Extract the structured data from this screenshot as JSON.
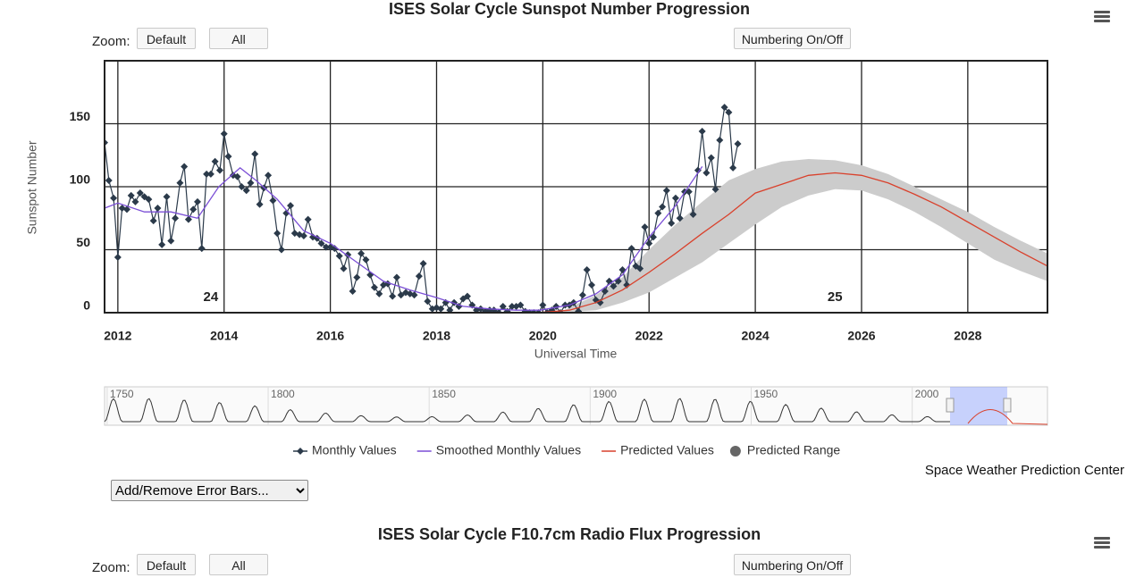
{
  "chart_data": {
    "type": "line",
    "title": "ISES Solar Cycle Sunspot Number Progression",
    "xlabel": "Universal Time",
    "ylabel": "Sunspot Number",
    "xlim": [
      2011.75,
      2029.5
    ],
    "ylim": [
      0,
      200
    ],
    "xticks": [
      2012,
      2014,
      2016,
      2018,
      2020,
      2022,
      2024,
      2026,
      2028
    ],
    "yticks": [
      0,
      50,
      100,
      150
    ],
    "grid": true,
    "annotations": [
      {
        "text": "24",
        "x": 2013.75
      },
      {
        "text": "25",
        "x": 2025.5
      }
    ],
    "series": [
      {
        "name": "Monthly Values",
        "color": "#2b3a4a",
        "marker": "diamond",
        "x": [
          2011.75,
          2011.83,
          2011.92,
          2012.0,
          2012.08,
          2012.17,
          2012.25,
          2012.33,
          2012.42,
          2012.5,
          2012.58,
          2012.67,
          2012.75,
          2012.83,
          2012.92,
          2013.0,
          2013.08,
          2013.17,
          2013.25,
          2013.33,
          2013.42,
          2013.5,
          2013.58,
          2013.67,
          2013.75,
          2013.83,
          2013.92,
          2014.0,
          2014.08,
          2014.17,
          2014.25,
          2014.33,
          2014.42,
          2014.5,
          2014.58,
          2014.67,
          2014.75,
          2014.83,
          2014.92,
          2015.0,
          2015.08,
          2015.17,
          2015.25,
          2015.33,
          2015.42,
          2015.5,
          2015.58,
          2015.67,
          2015.75,
          2015.83,
          2015.92,
          2016.0,
          2016.08,
          2016.17,
          2016.25,
          2016.33,
          2016.42,
          2016.5,
          2016.58,
          2016.67,
          2016.75,
          2016.83,
          2016.92,
          2017.0,
          2017.08,
          2017.17,
          2017.25,
          2017.33,
          2017.42,
          2017.5,
          2017.58,
          2017.67,
          2017.75,
          2017.83,
          2017.92,
          2018.0,
          2018.08,
          2018.17,
          2018.25,
          2018.33,
          2018.42,
          2018.5,
          2018.58,
          2018.67,
          2018.75,
          2018.83,
          2018.92,
          2019.0,
          2019.08,
          2019.17,
          2019.25,
          2019.33,
          2019.42,
          2019.5,
          2019.58,
          2019.67,
          2019.75,
          2019.83,
          2019.92,
          2020.0,
          2020.08,
          2020.17,
          2020.25,
          2020.33,
          2020.42,
          2020.5,
          2020.58,
          2020.67,
          2020.75,
          2020.83,
          2020.92,
          2021.0,
          2021.08,
          2021.17,
          2021.25,
          2021.33,
          2021.42,
          2021.5,
          2021.58,
          2021.67,
          2021.75,
          2021.83,
          2021.92,
          2022.0,
          2022.08,
          2022.17,
          2022.25,
          2022.33,
          2022.42,
          2022.5,
          2022.58,
          2022.67,
          2022.75,
          2022.83,
          2022.92,
          2023.0,
          2023.08,
          2023.17,
          2023.25,
          2023.33,
          2023.42,
          2023.5,
          2023.58,
          2023.67
        ],
        "values": [
          135,
          105,
          91,
          44,
          83,
          82,
          93,
          88,
          95,
          92,
          90,
          73,
          83,
          54,
          92,
          57,
          75,
          103,
          116,
          74,
          82,
          88,
          51,
          110,
          110,
          120,
          113,
          142,
          124,
          109,
          108,
          100,
          97,
          103,
          126,
          86,
          99,
          109,
          89,
          63,
          50,
          79,
          85,
          63,
          62,
          61,
          74,
          60,
          59,
          55,
          52,
          52,
          51,
          45,
          35,
          46,
          17,
          28,
          47,
          42,
          30,
          20,
          15,
          22,
          23,
          13,
          28,
          14,
          16,
          15,
          14,
          29,
          39,
          9,
          3,
          4,
          3,
          8,
          2,
          8,
          5,
          11,
          13,
          6,
          2,
          3,
          1,
          2,
          2,
          0,
          5,
          1,
          5,
          5,
          6,
          1,
          0,
          0,
          0,
          6,
          0,
          2,
          5,
          0,
          6,
          6,
          8,
          1,
          14,
          34,
          22,
          10,
          8,
          17,
          25,
          21,
          25,
          34,
          22,
          51,
          37,
          35,
          68,
          55,
          60,
          79,
          84,
          97,
          71,
          91,
          75,
          96,
          96,
          78,
          113,
          144,
          111,
          123,
          98,
          137,
          163,
          159,
          115,
          134
        ]
      },
      {
        "name": "Smoothed Monthly Values",
        "color": "#7b4fd6",
        "x": [
          2011.75,
          2012.0,
          2012.5,
          2013.0,
          2013.5,
          2013.9,
          2014.3,
          2014.6,
          2015.0,
          2015.5,
          2016.0,
          2016.5,
          2017.0,
          2017.5,
          2018.0,
          2018.5,
          2019.0,
          2019.5,
          2019.95,
          2020.5,
          2021.0,
          2021.5,
          2022.0,
          2022.5,
          2023.0
        ],
        "values": [
          83,
          87,
          80,
          80,
          75,
          100,
          115,
          105,
          90,
          65,
          55,
          40,
          25,
          18,
          12,
          5,
          3,
          2,
          2,
          6,
          15,
          30,
          60,
          85,
          116
        ]
      },
      {
        "name": "Predicted Values",
        "color": "#d9412c",
        "x": [
          2019.9,
          2020.5,
          2021.0,
          2021.5,
          2022.0,
          2022.5,
          2023.0,
          2023.5,
          2024.0,
          2024.5,
          2025.0,
          2025.5,
          2026.0,
          2026.5,
          2027.0,
          2027.5,
          2028.0,
          2028.5,
          2029.0,
          2029.5
        ],
        "values": [
          0,
          2,
          8,
          18,
          32,
          47,
          63,
          78,
          95,
          102,
          109,
          111,
          109,
          103,
          94,
          84,
          72,
          60,
          48,
          37
        ]
      },
      {
        "name": "Predicted Range",
        "color": "#cccccc",
        "legend_color": "#666666",
        "x": [
          2020.3,
          2021.0,
          2021.5,
          2022.0,
          2022.5,
          2023.0,
          2023.5,
          2024.0,
          2024.5,
          2025.0,
          2025.5,
          2026.0,
          2026.5,
          2027.0,
          2027.5,
          2028.0,
          2028.5,
          2029.0,
          2029.5
        ],
        "high": [
          0,
          14,
          28,
          50,
          70,
          88,
          105,
          114,
          120,
          122,
          121,
          117,
          110,
          100,
          90,
          80,
          68,
          57,
          47
        ],
        "low": [
          0,
          2,
          8,
          16,
          28,
          40,
          55,
          70,
          84,
          93,
          98,
          97,
          90,
          80,
          68,
          55,
          42,
          33,
          25
        ]
      }
    ]
  },
  "navigator": {
    "xlim": [
      1749.2,
      2042
    ],
    "xticks": [
      1750,
      1800,
      1850,
      1900,
      1950,
      2000
    ]
  },
  "controls": {
    "zoom_label": "Zoom:",
    "default": "Default",
    "all": "All",
    "numbering": "Numbering On/Off"
  },
  "credit": "Space Weather Prediction Center",
  "error_bars_select": "Add/Remove Error Bars...",
  "second_chart": {
    "title": "ISES Solar Cycle F10.7cm Radio Flux Progression",
    "zoom_label": "Zoom:",
    "default": "Default",
    "all": "All",
    "numbering": "Numbering On/Off"
  }
}
